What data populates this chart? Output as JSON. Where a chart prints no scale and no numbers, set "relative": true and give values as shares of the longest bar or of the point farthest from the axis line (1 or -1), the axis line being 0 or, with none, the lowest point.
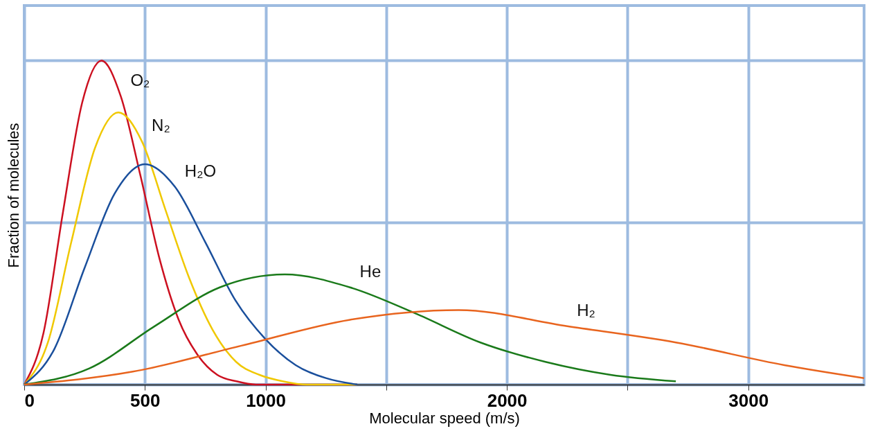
{
  "chart_data": {
    "type": "line",
    "relative": true,
    "xlabel": "Molecular speed (m/s)",
    "ylabel": "Fraction of molecules",
    "xlim": [
      0,
      3480
    ],
    "xticks": [
      0,
      500,
      1000,
      {
        "value": 1500,
        "label": null
      },
      2000,
      {
        "value": 2500,
        "label": null
      },
      3000
    ],
    "grid": true,
    "legend": false,
    "marker": "none",
    "line_style": "solid",
    "series": [
      {
        "name": "O₂",
        "color": "#cc1020",
        "x": [
          0,
          80,
          160,
          240,
          320,
          400,
          480,
          560,
          640,
          720,
          800,
          880,
          960,
          1380
        ],
        "values": [
          0,
          0.16,
          0.53,
          0.87,
          1,
          0.89,
          0.65,
          0.39,
          0.2,
          0.09,
          0.03,
          0.01,
          0,
          0
        ]
      },
      {
        "name": "N₂",
        "color": "#f0c800",
        "x": [
          0,
          98,
          195,
          293,
          390,
          488,
          585,
          683,
          780,
          878,
          975,
          1073,
          1170,
          1380
        ],
        "values": [
          0,
          0.13,
          0.44,
          0.73,
          0.84,
          0.75,
          0.54,
          0.33,
          0.17,
          0.07,
          0.03,
          0.01,
          0,
          0
        ]
      },
      {
        "name": "H₂O",
        "color": "#1a4f9c",
        "x": [
          0,
          125,
          250,
          375,
          500,
          625,
          750,
          875,
          1000,
          1125,
          1250,
          1380
        ],
        "values": [
          0,
          0.11,
          0.36,
          0.59,
          0.68,
          0.61,
          0.44,
          0.26,
          0.14,
          0.06,
          0.02,
          0
        ]
      },
      {
        "name": "He",
        "color": "#1a7a1a",
        "x": [
          0,
          270,
          540,
          810,
          1080,
          1350,
          1620,
          1890,
          2160,
          2430,
          2700
        ],
        "values": [
          0,
          0.05,
          0.18,
          0.3,
          0.34,
          0.3,
          0.22,
          0.13,
          0.07,
          0.03,
          0.01
        ]
      },
      {
        "name": "H₂",
        "color": "#e8641e",
        "x": [
          0,
          450,
          900,
          1350,
          1800,
          2250,
          2700,
          3150,
          3480
        ],
        "values": [
          0,
          0.04,
          0.12,
          0.2,
          0.23,
          0.18,
          0.13,
          0.06,
          0.02
        ]
      }
    ]
  }
}
